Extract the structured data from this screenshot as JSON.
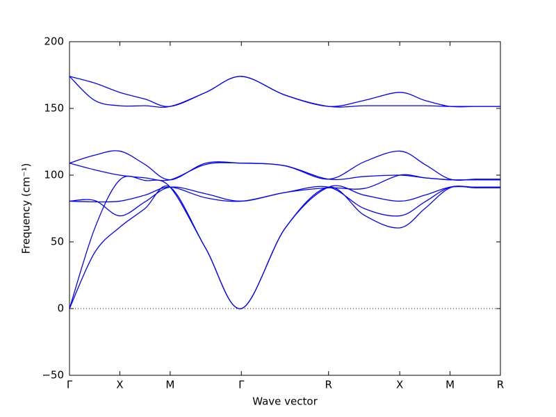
{
  "chart_data": {
    "type": "line",
    "xlabel": "Wave vector",
    "ylabel": "Frequency (cm⁻¹)",
    "x": [
      0,
      0.25,
      0.5,
      0.75,
      1.0,
      1.354,
      1.707,
      2.14,
      2.573,
      2.927,
      3.28,
      3.53,
      3.78,
      4.03,
      4.28
    ],
    "xlim": [
      0,
      4.28
    ],
    "xticks": [
      {
        "value": 0,
        "label": "Γ"
      },
      {
        "value": 0.5,
        "label": "X"
      },
      {
        "value": 1.0,
        "label": "M"
      },
      {
        "value": 1.707,
        "label": "Γ"
      },
      {
        "value": 2.573,
        "label": "R"
      },
      {
        "value": 3.28,
        "label": "X"
      },
      {
        "value": 3.78,
        "label": "M"
      },
      {
        "value": 4.28,
        "label": "R"
      }
    ],
    "ylim": [
      -50,
      200
    ],
    "yticks": [
      {
        "value": -50,
        "label": "−50"
      },
      0,
      50,
      100,
      150,
      200
    ],
    "hline": 0,
    "series": [
      {
        "color": "#0000ff",
        "values": [
          174,
          169,
          162,
          157,
          151.5,
          162,
          174,
          160,
          151.5,
          156,
          162,
          156,
          151.5,
          151.5,
          151.5
        ]
      },
      {
        "color": "#0000ff",
        "values": [
          174,
          156,
          152,
          152,
          151.5,
          162,
          174,
          160,
          151.5,
          152,
          152,
          152,
          151.5,
          151.5,
          151.5
        ]
      },
      {
        "color": "#0000ff",
        "values": [
          109,
          115,
          118,
          108,
          96.5,
          109,
          109,
          107,
          97,
          110,
          118,
          108,
          97,
          97,
          97
        ]
      },
      {
        "color": "#0000ff",
        "values": [
          109,
          104,
          100,
          98,
          96.5,
          108,
          109,
          107,
          97,
          99,
          100,
          98,
          96.5,
          96.5,
          96.5
        ]
      },
      {
        "color": "#0000ff",
        "values": [
          0,
          60,
          96.5,
          96,
          91,
          45,
          0,
          60,
          91,
          85,
          80.5,
          85,
          91,
          91,
          91
        ]
      },
      {
        "color": "#0000ff",
        "values": [
          0,
          42,
          61,
          75,
          91,
          45,
          0,
          60,
          91,
          70,
          60.5,
          75,
          90.5,
          90.5,
          90.5
        ]
      },
      {
        "color": "#0000ff",
        "values": [
          80.5,
          80,
          80.5,
          85,
          91,
          83,
          80.5,
          87,
          91,
          75,
          69.5,
          80,
          91,
          91,
          91
        ]
      },
      {
        "color": "#0000ff",
        "values": [
          80.5,
          81,
          69.5,
          80,
          91,
          86,
          80.5,
          87,
          90.5,
          90,
          100,
          98,
          96.5,
          96.5,
          96.5
        ]
      }
    ]
  }
}
